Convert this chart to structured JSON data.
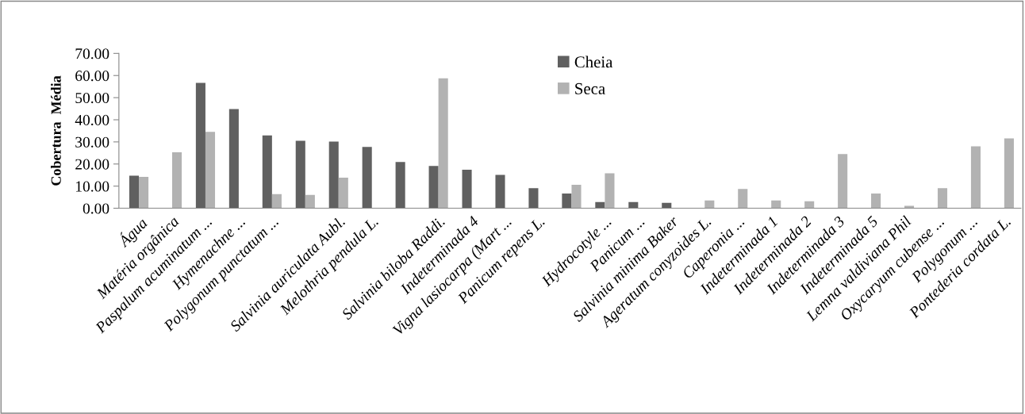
{
  "chart_data": {
    "type": "bar",
    "ylabel": "Cobertura  Média",
    "categories": [
      "Água",
      "Matéria orgânica",
      "Paspalum acuminatum ...",
      "Hymenachne ...",
      "Polygonum punctatum ...",
      null,
      "Salvinia auriculata Aubl.",
      "Melothria pendula L.",
      null,
      "Salvinia biloba Raddi.",
      "Indeterminada 4",
      "Vigna lasiocarpa (Mart ...",
      "Panicum repens L.",
      null,
      "Hydrocotyle ...",
      "Panicum ...",
      "Salvinia minima Baker",
      "Ageratum conyzoides L.",
      "Caperonia ...",
      "Indeterminada 1",
      "Indeterminada 2",
      "Indeterminada 3",
      "Indeterminada 5",
      "Lemna valdiviana Phil",
      "Oxycaryum cubense ...",
      "Polygonum ...",
      "Pontederia cordata L."
    ],
    "series": [
      {
        "name": "Cheia",
        "color": "#606060",
        "values": [
          14.7,
          null,
          56.7,
          44.8,
          32.9,
          30.5,
          30.1,
          27.7,
          20.9,
          19.1,
          17.4,
          15.1,
          9.1,
          6.7,
          2.8,
          2.8,
          2.4,
          null,
          null,
          null,
          null,
          null,
          null,
          null,
          null,
          null,
          null
        ]
      },
      {
        "name": "Seca",
        "color": "#b2b2b2",
        "values": [
          14.2,
          25.3,
          34.5,
          null,
          6.4,
          6.0,
          13.8,
          null,
          null,
          58.7,
          null,
          null,
          null,
          10.6,
          15.8,
          null,
          null,
          3.5,
          8.7,
          3.5,
          3.2,
          24.5,
          6.7,
          1.1,
          9.1,
          28.0,
          31.6
        ]
      }
    ],
    "ylim": [
      0,
      70
    ],
    "yticks": [
      {
        "value": 0,
        "label": "0.00"
      },
      {
        "value": 10,
        "label": "10.00"
      },
      {
        "value": 20,
        "label": "20.00"
      },
      {
        "value": 30,
        "label": "30.00"
      },
      {
        "value": 40,
        "label": "40.00"
      },
      {
        "value": 50,
        "label": "50.00"
      },
      {
        "value": 60,
        "label": "60.00"
      },
      {
        "value": 70,
        "label": "70.00"
      }
    ],
    "grid": false,
    "legend": "top"
  }
}
